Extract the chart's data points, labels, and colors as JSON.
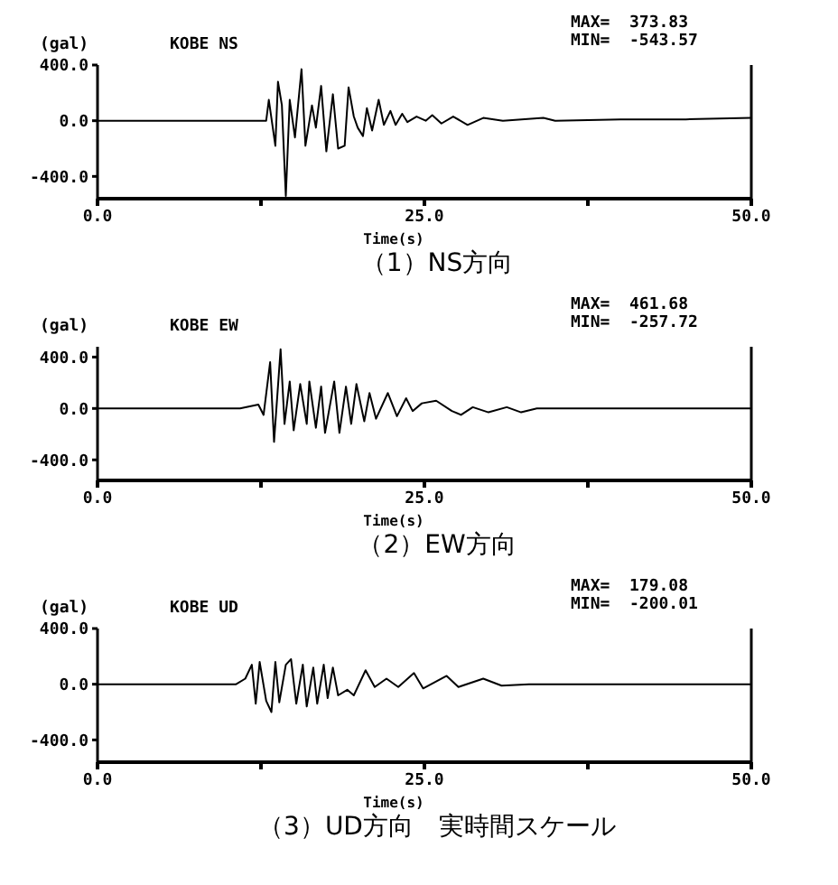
{
  "chart_data": [
    {
      "type": "line",
      "title": "KOBE NS",
      "ylabel": "(gal)",
      "xlabel": "Time(s)",
      "annotations": [
        "MAX=  373.83",
        "MIN=  -543.57",
        "（1）NS方向"
      ],
      "xlim": [
        0,
        50
      ],
      "xticks": [
        {
          "value": 0,
          "label": "0.0"
        },
        {
          "value": 12.5,
          "label": null
        },
        {
          "value": 25,
          "label": "25.0"
        },
        {
          "value": 37.5,
          "label": null
        },
        {
          "value": 50,
          "label": "50.0"
        }
      ],
      "ylim": [
        -560,
        400
      ],
      "yticks": [
        {
          "value": 400,
          "label": "400.0"
        },
        {
          "value": 0,
          "label": "0.0"
        },
        {
          "value": -400,
          "label": "-400.0"
        }
      ],
      "marker": "none",
      "grid": false,
      "x": [
        0,
        5,
        10,
        12.9,
        13.1,
        13.6,
        13.8,
        14.1,
        14.4,
        14.7,
        15.1,
        15.6,
        15.9,
        16.4,
        16.7,
        17.1,
        17.5,
        18.0,
        18.4,
        18.9,
        19.2,
        19.6,
        19.9,
        20.3,
        20.6,
        21.0,
        21.5,
        21.9,
        22.4,
        22.8,
        23.3,
        23.7,
        24.4,
        25.1,
        25.6,
        26.3,
        27.2,
        28.3,
        29.5,
        31,
        34.1,
        35,
        40,
        45,
        50
      ],
      "series": [
        {
          "color": "#000000",
          "values": [
            0,
            0,
            0,
            0,
            150,
            -180,
            280,
            110,
            -540,
            150,
            -120,
            370,
            -180,
            110,
            -50,
            250,
            -220,
            190,
            -200,
            -180,
            240,
            30,
            -50,
            -110,
            90,
            -70,
            150,
            -30,
            70,
            -30,
            50,
            -10,
            30,
            0,
            40,
            -20,
            30,
            -30,
            20,
            0,
            20,
            0,
            10,
            10,
            20
          ]
        }
      ]
    },
    {
      "type": "line",
      "title": "KOBE EW",
      "ylabel": "(gal)",
      "xlabel": "Time(s)",
      "annotations": [
        "MAX=  461.68",
        "MIN=  -257.72",
        "（2）EW方向"
      ],
      "xlim": [
        0,
        50
      ],
      "xticks": [
        {
          "value": 0,
          "label": "0.0"
        },
        {
          "value": 12.5,
          "label": null
        },
        {
          "value": 25,
          "label": "25.0"
        },
        {
          "value": 37.5,
          "label": null
        },
        {
          "value": 50,
          "label": "50.0"
        }
      ],
      "ylim": [
        -560,
        480
      ],
      "yticks": [
        {
          "value": 400,
          "label": "400.0"
        },
        {
          "value": 0,
          "label": "0.0"
        },
        {
          "value": -400,
          "label": "-400.0"
        }
      ],
      "marker": "none",
      "grid": false,
      "x": [
        0,
        5,
        10.9,
        12.3,
        12.7,
        13.2,
        13.5,
        14.0,
        14.3,
        14.7,
        15.0,
        15.5,
        16.0,
        16.2,
        16.7,
        17.1,
        17.4,
        18.1,
        18.5,
        19.0,
        19.4,
        19.8,
        20.4,
        20.8,
        21.3,
        22.2,
        22.9,
        23.6,
        24.1,
        24.8,
        25.9,
        27.1,
        27.8,
        28.7,
        29.9,
        31.3,
        32.4,
        33.6,
        40,
        50
      ],
      "series": [
        {
          "color": "#000000",
          "values": [
            0,
            0,
            0,
            30,
            -50,
            360,
            -260,
            460,
            -120,
            210,
            -170,
            190,
            -120,
            210,
            -150,
            170,
            -190,
            210,
            -190,
            170,
            -120,
            190,
            -100,
            120,
            -80,
            120,
            -60,
            80,
            -20,
            40,
            60,
            -20,
            -50,
            10,
            -30,
            10,
            -30,
            0,
            0,
            0
          ]
        }
      ]
    },
    {
      "type": "line",
      "title": "KOBE UD",
      "ylabel": "(gal)",
      "xlabel": "Time(s)",
      "annotations": [
        "MAX=  179.08",
        "MIN=  -200.01",
        "（3）UD方向　実時間スケール"
      ],
      "xlim": [
        0,
        50
      ],
      "xticks": [
        {
          "value": 0,
          "label": "0.0"
        },
        {
          "value": 12.5,
          "label": null
        },
        {
          "value": 25,
          "label": "25.0"
        },
        {
          "value": 37.5,
          "label": null
        },
        {
          "value": 50,
          "label": "50.0"
        }
      ],
      "ylim": [
        -560,
        400
      ],
      "yticks": [
        {
          "value": 400,
          "label": "400.0"
        },
        {
          "value": 0,
          "label": "0.0"
        },
        {
          "value": -400,
          "label": "-400.0"
        }
      ],
      "marker": "none",
      "grid": false,
      "x": [
        0,
        5,
        10.6,
        11.3,
        11.8,
        12.1,
        12.4,
        12.9,
        13.3,
        13.6,
        13.9,
        14.4,
        14.8,
        15.2,
        15.7,
        16.0,
        16.5,
        16.8,
        17.3,
        17.6,
        18.0,
        18.4,
        19.1,
        19.6,
        20.5,
        21.2,
        22.1,
        23.0,
        24.2,
        24.9,
        26.7,
        27.6,
        29.5,
        30.9,
        33,
        40,
        50
      ],
      "series": [
        {
          "color": "#000000",
          "values": [
            0,
            0,
            0,
            40,
            140,
            -140,
            160,
            -120,
            -200,
            160,
            -130,
            140,
            180,
            -140,
            140,
            -160,
            120,
            -140,
            140,
            -100,
            120,
            -80,
            -40,
            -80,
            100,
            -20,
            40,
            -20,
            80,
            -30,
            60,
            -20,
            40,
            -10,
            0,
            0,
            0
          ]
        }
      ]
    }
  ]
}
